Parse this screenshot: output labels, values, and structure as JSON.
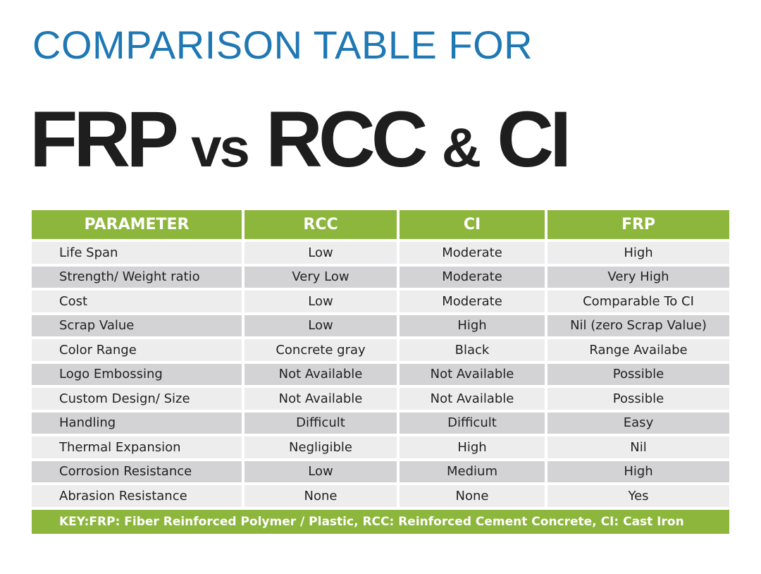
{
  "header": {
    "subtitle": "COMPARISON TABLE FOR",
    "title_part1": "FRP",
    "title_vs": "vs",
    "title_part2": "RCC",
    "title_amp": "&",
    "title_part3": "CI"
  },
  "table": {
    "headers": [
      "PARAMETER",
      "RCC",
      "CI",
      "FRP"
    ],
    "rows": [
      [
        "Life Span",
        "Low",
        "Moderate",
        "High"
      ],
      [
        "Strength/ Weight ratio",
        "Very Low",
        "Moderate",
        "Very High"
      ],
      [
        "Cost",
        "Low",
        "Moderate",
        "Comparable To CI"
      ],
      [
        "Scrap Value",
        "Low",
        "High",
        "Nil (zero Scrap Value)"
      ],
      [
        "Color Range",
        "Concrete gray",
        "Black",
        "Range Availabe"
      ],
      [
        "Logo Embossing",
        "Not Available",
        "Not Available",
        "Possible"
      ],
      [
        "Custom Design/ Size",
        "Not Available",
        "Not Available",
        "Possible"
      ],
      [
        "Handling",
        "Difficult",
        "Difficult",
        "Easy"
      ],
      [
        "Thermal Expansion",
        "Negligible",
        "High",
        "Nil"
      ],
      [
        "Corrosion Resistance",
        "Low",
        "Medium",
        "High"
      ],
      [
        "Abrasion Resistance",
        "None",
        "None",
        "Yes"
      ]
    ],
    "key": "KEY:FRP: Fiber Reinforced Polymer / Plastic, RCC: Reinforced Cement Concrete, CI: Cast Iron"
  },
  "colors": {
    "accent_green": "#8db63c",
    "title_blue": "#1f78b4",
    "row_light": "#eeedee",
    "row_dark": "#d3d2d5"
  }
}
